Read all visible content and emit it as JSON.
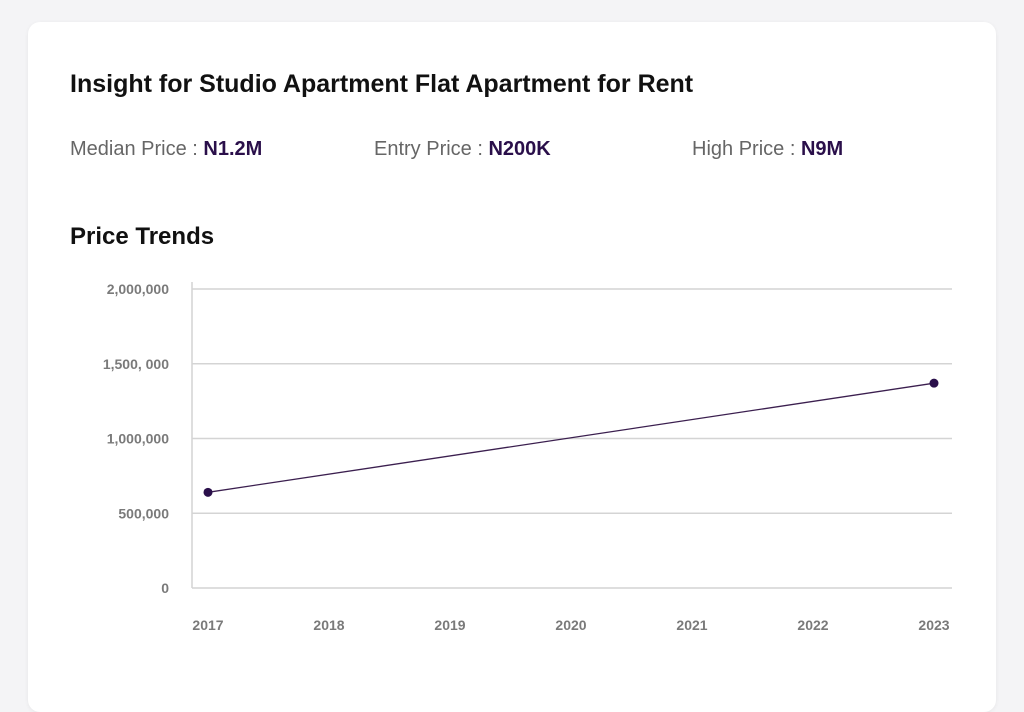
{
  "card": {
    "title": "Insight for Studio Apartment Flat Apartment for Rent",
    "stats": [
      {
        "label": "Median Price : ",
        "value": "N1.2M"
      },
      {
        "label": "Entry Price : ",
        "value": "N200K"
      },
      {
        "label": "High Price : ",
        "value": "N9M"
      }
    ],
    "section_title": "Price Trends"
  },
  "colors": {
    "accent": "#2a0f4a",
    "line": "#3b1f4f",
    "grid": "#d4d4d4",
    "axis_label": "#7a7a7a"
  },
  "chart_data": {
    "type": "line",
    "categories": [
      "2017",
      "2018",
      "2019",
      "2020",
      "2021",
      "2022",
      "2023"
    ],
    "yticks": [
      0,
      500000,
      1000000,
      1500000,
      2000000
    ],
    "ytick_labels": [
      "0",
      "500,000",
      "1,000,000",
      "1,500, 000",
      "2,000,000"
    ],
    "ylim": [
      0,
      2000000
    ],
    "series": [
      {
        "points": [
          {
            "x": "2017",
            "y": 640000
          },
          {
            "x": "2023",
            "y": 1370000
          }
        ]
      }
    ],
    "grid": true
  }
}
